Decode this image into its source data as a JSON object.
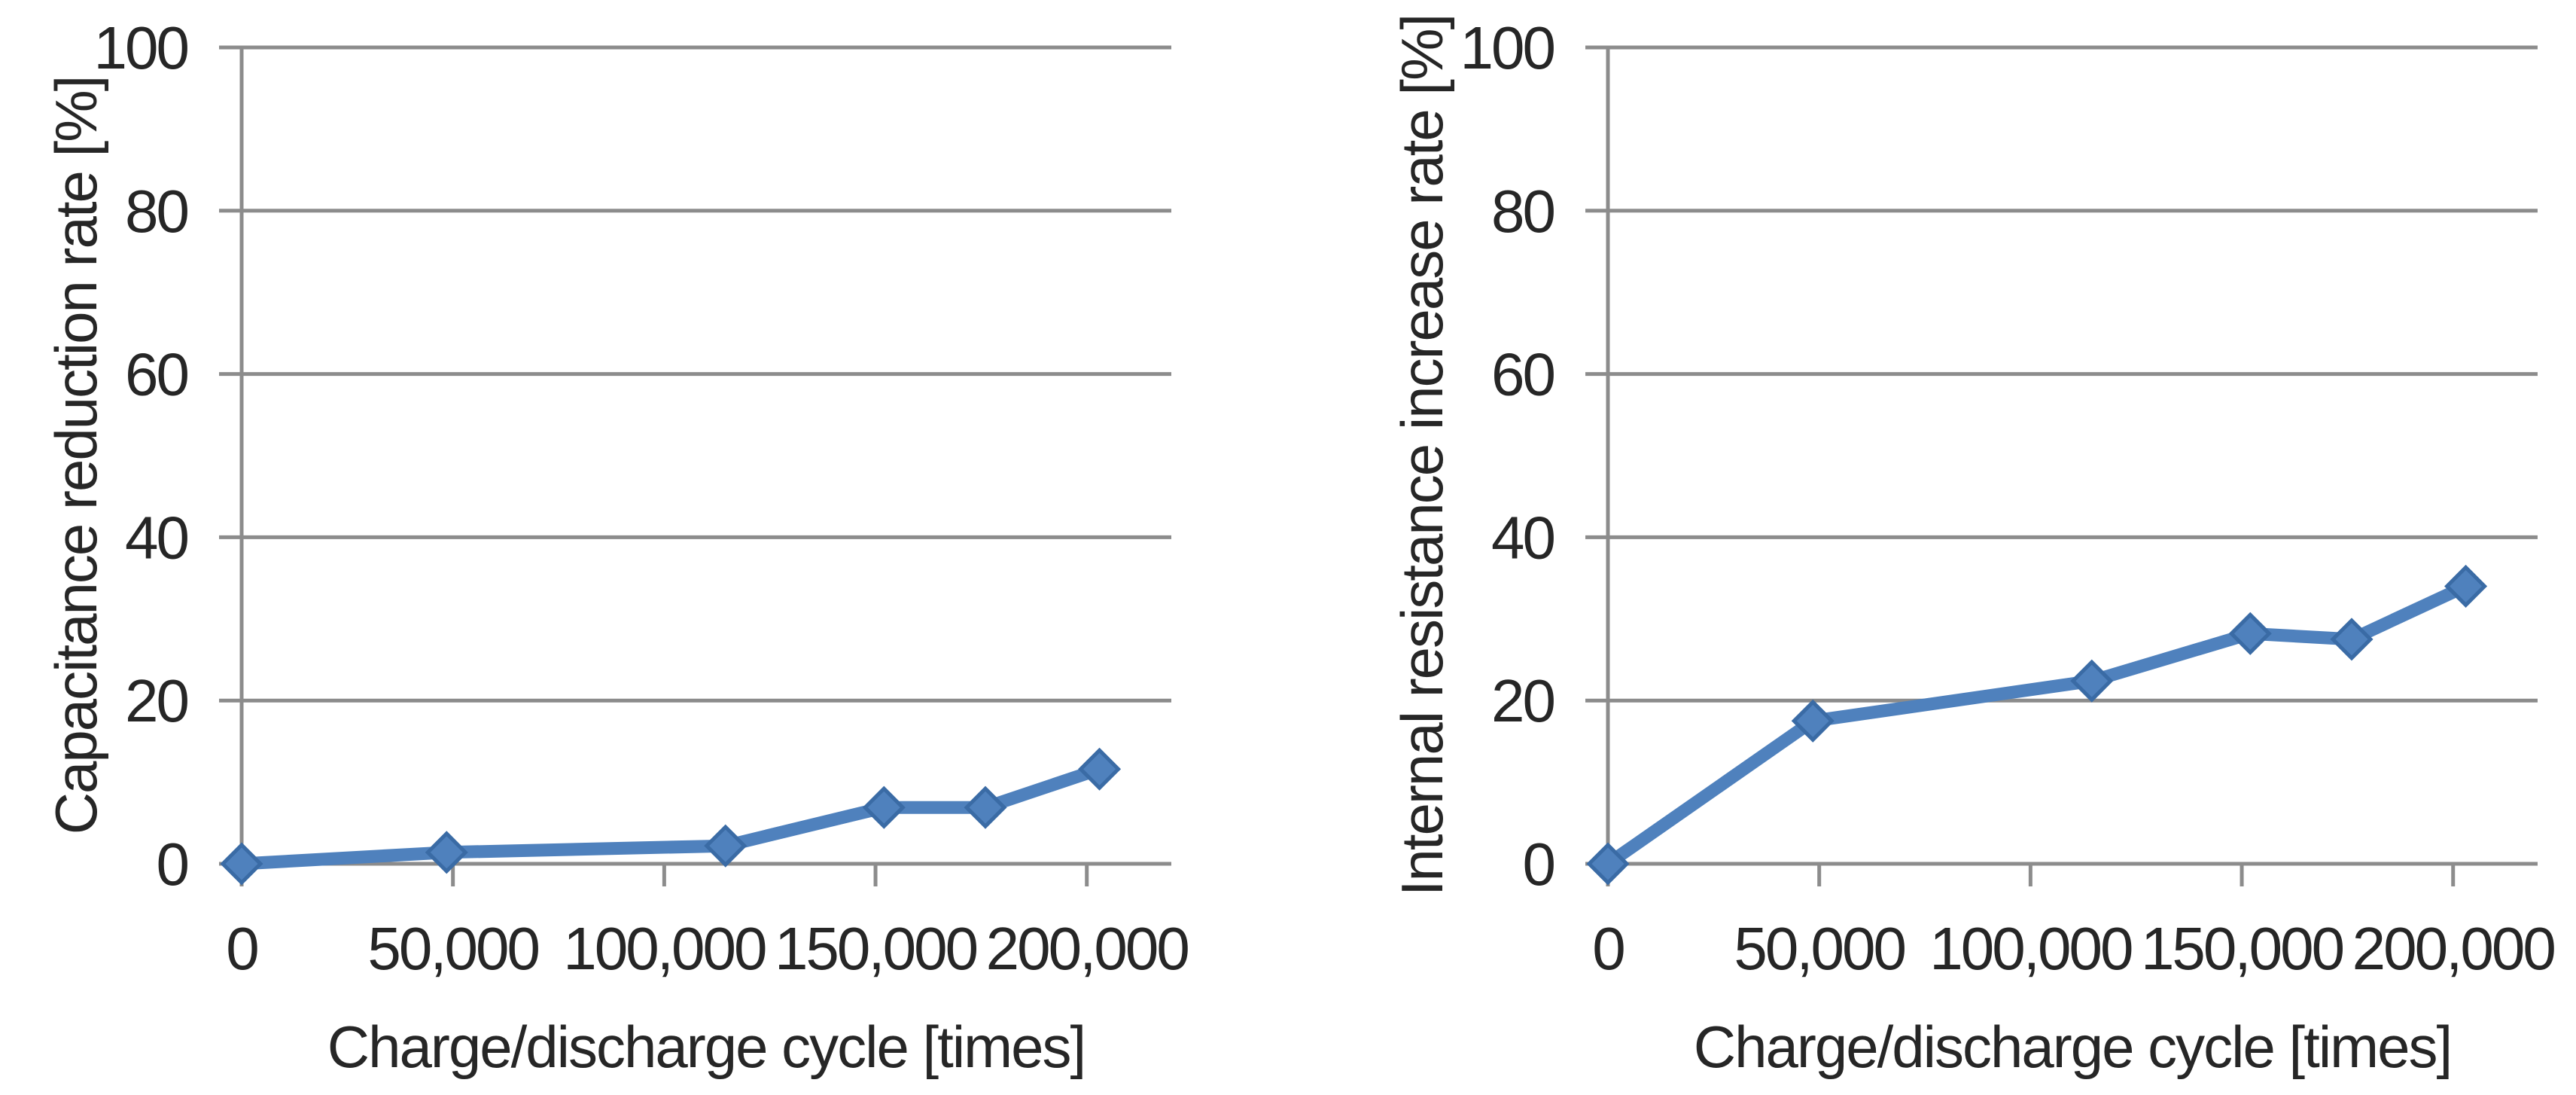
{
  "page": {
    "background": "#FFFFFF",
    "description_colors": {
      "series": "#4F81BD",
      "marker_border": "#3A6BA5",
      "grid": "#8C8C8C",
      "text": "#262626"
    }
  },
  "chart_data": [
    {
      "type": "line",
      "title": "",
      "xlabel": "Charge/discharge cycle [times]",
      "ylabel": "Capacitance reduction rate [%]",
      "x": [
        0,
        48500,
        114500,
        152000,
        176000,
        203000
      ],
      "y": [
        0,
        1.4,
        2.2,
        6.9,
        6.9,
        11.6
      ],
      "xlim": [
        0,
        220000
      ],
      "ylim": [
        0,
        100
      ],
      "x_ticks": [
        0,
        50000,
        100000,
        150000,
        200000
      ],
      "x_tick_labels": [
        "0",
        "50,000",
        "100,000",
        "150,000",
        "200,000"
      ],
      "y_ticks": [
        0,
        20,
        40,
        60,
        80,
        100
      ],
      "y_tick_labels": [
        "0",
        "20",
        "40",
        "60",
        "80",
        "100"
      ],
      "grid": "horizontal-only",
      "legend": "none",
      "series_color": "#4F81BD",
      "marker": "diamond",
      "layout": {
        "plot_left": 321,
        "plot_right": 1556,
        "plot_top": 63,
        "plot_bottom": 1147
      }
    },
    {
      "type": "line",
      "title": "",
      "xlabel": "Charge/discharge cycle [times]",
      "ylabel": "Internal resistance increase rate [%]",
      "x": [
        0,
        48500,
        114500,
        152000,
        176000,
        203000
      ],
      "y": [
        0,
        17.5,
        22.4,
        28.2,
        27.5,
        34.0
      ],
      "xlim": [
        0,
        220000
      ],
      "ylim": [
        0,
        100
      ],
      "x_ticks": [
        0,
        50000,
        100000,
        150000,
        200000
      ],
      "x_tick_labels": [
        "0",
        "50,000",
        "100,000",
        "150,000",
        "200,000"
      ],
      "y_ticks": [
        0,
        20,
        40,
        60,
        80,
        100
      ],
      "y_tick_labels": [
        "0",
        "20",
        "40",
        "60",
        "80",
        "100"
      ],
      "grid": "horizontal-only",
      "legend": "none",
      "series_color": "#4F81BD",
      "marker": "diamond",
      "layout": {
        "plot_left": 425,
        "plot_right": 1660,
        "plot_top": 63,
        "plot_bottom": 1147
      }
    }
  ]
}
